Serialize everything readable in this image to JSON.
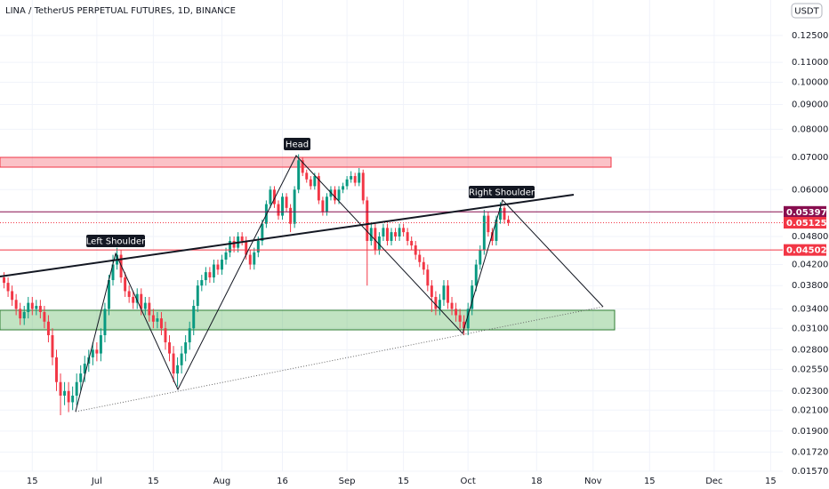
{
  "chart_data": {
    "type": "candlestick",
    "title": "LINA / TetherUS PERPETUAL FUTURES, 1D, BINANCE",
    "currency": "USDT",
    "up_color": "#089981",
    "down_color": "#f23645",
    "log_scale": true,
    "grid": true,
    "ylim": [
      0.0157,
      0.148
    ],
    "yticks": [
      {
        "value": 0.125,
        "label": "0.12500"
      },
      {
        "value": 0.11,
        "label": "0.11000"
      },
      {
        "value": 0.1,
        "label": "0.10000"
      },
      {
        "value": 0.09,
        "label": "0.09000"
      },
      {
        "value": 0.08,
        "label": "0.08000"
      },
      {
        "value": 0.07,
        "label": "0.07000"
      },
      {
        "value": 0.06,
        "label": "0.06000"
      },
      {
        "value": 0.048,
        "label": "0.04800"
      },
      {
        "value": 0.042,
        "label": "0.04200"
      },
      {
        "value": 0.038,
        "label": "0.03800"
      },
      {
        "value": 0.034,
        "label": "0.03400"
      },
      {
        "value": 0.031,
        "label": "0.03100"
      },
      {
        "value": 0.028,
        "label": "0.02800"
      },
      {
        "value": 0.0255,
        "label": "0.02550"
      },
      {
        "value": 0.023,
        "label": "0.02300"
      },
      {
        "value": 0.021,
        "label": "0.02100"
      },
      {
        "value": 0.019,
        "label": "0.01900"
      },
      {
        "value": 0.0172,
        "label": "0.01720"
      },
      {
        "value": 0.0157,
        "label": "0.01570"
      }
    ],
    "xlim": [
      6,
      200
    ],
    "xticks": [
      {
        "value": 14,
        "label": "15"
      },
      {
        "value": 30,
        "label": "Jul"
      },
      {
        "value": 44,
        "label": "15"
      },
      {
        "value": 61,
        "label": "Aug"
      },
      {
        "value": 76,
        "label": "16"
      },
      {
        "value": 92,
        "label": "Sep"
      },
      {
        "value": 106,
        "label": "15"
      },
      {
        "value": 122,
        "label": "Oct"
      },
      {
        "value": 139,
        "label": "18"
      },
      {
        "value": 153,
        "label": "Nov"
      },
      {
        "value": 167,
        "label": "15"
      },
      {
        "value": 183,
        "label": "Dec"
      },
      {
        "value": 197,
        "label": "15"
      }
    ],
    "x": [
      7,
      8,
      9,
      10,
      11,
      12,
      13,
      14,
      15,
      16,
      17,
      18,
      19,
      20,
      21,
      22,
      23,
      24,
      25,
      26,
      27,
      28,
      29,
      30,
      31,
      32,
      33,
      34,
      35,
      36,
      37,
      38,
      39,
      40,
      41,
      42,
      43,
      44,
      45,
      46,
      47,
      48,
      49,
      50,
      51,
      52,
      53,
      54,
      55,
      56,
      57,
      58,
      59,
      60,
      61,
      62,
      63,
      64,
      65,
      66,
      67,
      68,
      69,
      70,
      71,
      72,
      73,
      74,
      75,
      76,
      77,
      78,
      79,
      80,
      81,
      82,
      83,
      84,
      85,
      86,
      87,
      88,
      89,
      90,
      91,
      92,
      93,
      94,
      95,
      96,
      97,
      98,
      99,
      100,
      101,
      102,
      103,
      104,
      105,
      106,
      107,
      108,
      109,
      110,
      111,
      112,
      113,
      114,
      115,
      116,
      117,
      118,
      119,
      120,
      121,
      122,
      123,
      124,
      125,
      126,
      127,
      128,
      129,
      130,
      131,
      132
    ],
    "open": [
      0.0395,
      0.0385,
      0.037,
      0.0355,
      0.034,
      0.0325,
      0.0335,
      0.035,
      0.034,
      0.0345,
      0.0335,
      0.032,
      0.03,
      0.027,
      0.024,
      0.0225,
      0.023,
      0.0218,
      0.0225,
      0.024,
      0.025,
      0.0262,
      0.027,
      0.028,
      0.0275,
      0.03,
      0.034,
      0.039,
      0.042,
      0.044,
      0.0395,
      0.037,
      0.036,
      0.035,
      0.0365,
      0.034,
      0.035,
      0.033,
      0.032,
      0.0325,
      0.031,
      0.029,
      0.0275,
      0.025,
      0.026,
      0.0275,
      0.029,
      0.031,
      0.0345,
      0.038,
      0.039,
      0.0405,
      0.0395,
      0.042,
      0.041,
      0.043,
      0.0445,
      0.047,
      0.0455,
      0.048,
      0.047,
      0.044,
      0.042,
      0.0445,
      0.047,
      0.051,
      0.056,
      0.06,
      0.056,
      0.053,
      0.058,
      0.055,
      0.051,
      0.06,
      0.069,
      0.065,
      0.063,
      0.061,
      0.064,
      0.057,
      0.054,
      0.058,
      0.06,
      0.057,
      0.06,
      0.061,
      0.063,
      0.064,
      0.062,
      0.065,
      0.057,
      0.047,
      0.05,
      0.045,
      0.048,
      0.05,
      0.047,
      0.049,
      0.048,
      0.05,
      0.049,
      0.047,
      0.046,
      0.044,
      0.0425,
      0.041,
      0.038,
      0.036,
      0.034,
      0.0355,
      0.038,
      0.035,
      0.034,
      0.033,
      0.032,
      0.031,
      0.034,
      0.038,
      0.042,
      0.045,
      0.053,
      0.049,
      0.047,
      0.052,
      0.055,
      0.052
    ],
    "high": [
      0.0405,
      0.0395,
      0.038,
      0.0365,
      0.035,
      0.0345,
      0.036,
      0.036,
      0.0355,
      0.0355,
      0.0345,
      0.033,
      0.031,
      0.028,
      0.025,
      0.024,
      0.024,
      0.0235,
      0.025,
      0.026,
      0.0272,
      0.028,
      0.029,
      0.029,
      0.031,
      0.035,
      0.04,
      0.044,
      0.0455,
      0.045,
      0.0405,
      0.038,
      0.037,
      0.0375,
      0.0375,
      0.036,
      0.036,
      0.034,
      0.0335,
      0.0335,
      0.032,
      0.03,
      0.0285,
      0.027,
      0.0285,
      0.03,
      0.032,
      0.0355,
      0.039,
      0.04,
      0.0415,
      0.0415,
      0.043,
      0.043,
      0.044,
      0.0455,
      0.048,
      0.048,
      0.049,
      0.049,
      0.048,
      0.045,
      0.0455,
      0.048,
      0.052,
      0.057,
      0.061,
      0.061,
      0.057,
      0.059,
      0.059,
      0.056,
      0.061,
      0.071,
      0.07,
      0.066,
      0.064,
      0.065,
      0.065,
      0.058,
      0.059,
      0.061,
      0.061,
      0.061,
      0.062,
      0.064,
      0.0655,
      0.065,
      0.0665,
      0.066,
      0.058,
      0.051,
      0.051,
      0.049,
      0.051,
      0.051,
      0.05,
      0.05,
      0.051,
      0.051,
      0.05,
      0.048,
      0.047,
      0.045,
      0.0435,
      0.042,
      0.039,
      0.037,
      0.0365,
      0.039,
      0.039,
      0.036,
      0.035,
      0.034,
      0.033,
      0.035,
      0.039,
      0.043,
      0.046,
      0.0545,
      0.054,
      0.05,
      0.053,
      0.0565,
      0.0555,
      0.053
    ],
    "low": [
      0.0375,
      0.036,
      0.0345,
      0.033,
      0.0315,
      0.0315,
      0.0325,
      0.033,
      0.033,
      0.0325,
      0.031,
      0.029,
      0.026,
      0.023,
      0.0205,
      0.0215,
      0.0208,
      0.021,
      0.0215,
      0.023,
      0.024,
      0.0252,
      0.026,
      0.0265,
      0.0265,
      0.029,
      0.033,
      0.038,
      0.041,
      0.0385,
      0.036,
      0.035,
      0.034,
      0.034,
      0.033,
      0.033,
      0.032,
      0.031,
      0.031,
      0.03,
      0.028,
      0.0265,
      0.024,
      0.0235,
      0.025,
      0.0265,
      0.028,
      0.03,
      0.0335,
      0.037,
      0.038,
      0.0385,
      0.0385,
      0.04,
      0.04,
      0.042,
      0.0435,
      0.0445,
      0.0445,
      0.046,
      0.043,
      0.041,
      0.041,
      0.0435,
      0.046,
      0.05,
      0.055,
      0.055,
      0.052,
      0.052,
      0.054,
      0.049,
      0.05,
      0.059,
      0.064,
      0.062,
      0.06,
      0.06,
      0.056,
      0.053,
      0.053,
      0.057,
      0.056,
      0.056,
      0.059,
      0.06,
      0.062,
      0.061,
      0.061,
      0.056,
      0.038,
      0.046,
      0.044,
      0.044,
      0.047,
      0.046,
      0.046,
      0.047,
      0.047,
      0.048,
      0.046,
      0.045,
      0.043,
      0.0415,
      0.04,
      0.037,
      0.0335,
      0.033,
      0.033,
      0.0345,
      0.034,
      0.033,
      0.032,
      0.031,
      0.03,
      0.03,
      0.033,
      0.037,
      0.041,
      0.044,
      0.048,
      0.046,
      0.046,
      0.051,
      0.051,
      0.0505
    ],
    "close": [
      0.0385,
      0.037,
      0.0355,
      0.034,
      0.0325,
      0.0335,
      0.035,
      0.034,
      0.0345,
      0.0335,
      0.032,
      0.03,
      0.027,
      0.024,
      0.0225,
      0.023,
      0.0218,
      0.0225,
      0.024,
      0.025,
      0.0262,
      0.027,
      0.028,
      0.0275,
      0.03,
      0.034,
      0.039,
      0.042,
      0.044,
      0.0395,
      0.037,
      0.036,
      0.035,
      0.0365,
      0.034,
      0.035,
      0.033,
      0.032,
      0.0325,
      0.031,
      0.029,
      0.0275,
      0.025,
      0.026,
      0.0275,
      0.029,
      0.031,
      0.0345,
      0.038,
      0.039,
      0.0405,
      0.0395,
      0.042,
      0.041,
      0.043,
      0.0445,
      0.047,
      0.0455,
      0.048,
      0.047,
      0.044,
      0.042,
      0.0445,
      0.047,
      0.051,
      0.056,
      0.06,
      0.056,
      0.053,
      0.058,
      0.055,
      0.051,
      0.06,
      0.069,
      0.065,
      0.063,
      0.061,
      0.064,
      0.057,
      0.054,
      0.058,
      0.06,
      0.057,
      0.06,
      0.061,
      0.063,
      0.064,
      0.062,
      0.065,
      0.057,
      0.047,
      0.05,
      0.045,
      0.048,
      0.05,
      0.047,
      0.049,
      0.048,
      0.05,
      0.049,
      0.047,
      0.046,
      0.044,
      0.0425,
      0.041,
      0.038,
      0.036,
      0.034,
      0.0355,
      0.038,
      0.035,
      0.034,
      0.033,
      0.032,
      0.031,
      0.034,
      0.038,
      0.042,
      0.045,
      0.053,
      0.049,
      0.047,
      0.052,
      0.055,
      0.052,
      0.05125
    ],
    "price_lines": [
      {
        "value": 0.05397,
        "color": "#880e4f"
      },
      {
        "value": 0.04502,
        "color": "#f23645"
      }
    ],
    "annotations": [
      "Left Shoulder",
      "Head",
      "Right Shoulder"
    ]
  }
}
